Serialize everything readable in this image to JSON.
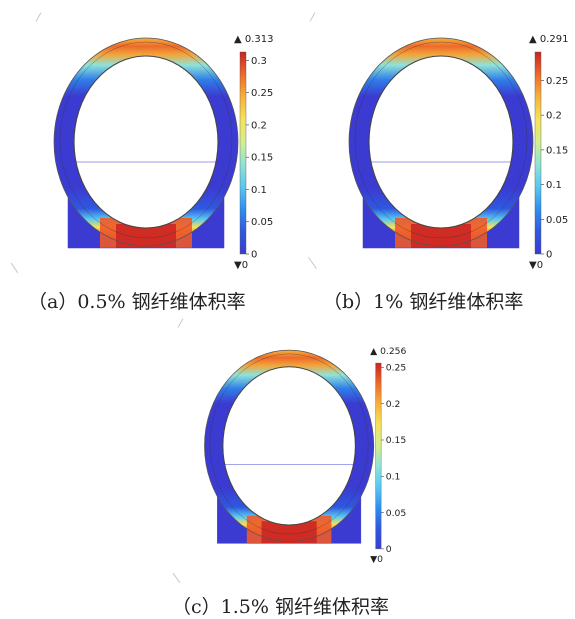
{
  "colormap": [
    "#3b3bd1",
    "#2f58e0",
    "#2f8ff0",
    "#58c7f2",
    "#8fe3d8",
    "#d3ef8c",
    "#f5e35a",
    "#f7b23a",
    "#ee6a2a",
    "#c92323"
  ],
  "panels": [
    {
      "caption": "（a）0.5% 钢纤维体积率",
      "max_label": "0.313",
      "min_label": "0",
      "max_value": 0.313,
      "ticks": [
        "0.3",
        "0.25",
        "0.2",
        "0.15",
        "0.1",
        "0.05",
        "0"
      ]
    },
    {
      "caption": "（b）1% 钢纤维体积率",
      "max_label": "0.291",
      "min_label": "0",
      "max_value": 0.291,
      "ticks": [
        "0.25",
        "0.2",
        "0.15",
        "0.1",
        "0.05",
        "0"
      ]
    },
    {
      "caption": "（c）1.5% 钢纤维体积率",
      "max_label": "0.256",
      "min_label": "0",
      "max_value": 0.256,
      "ticks": [
        "0.25",
        "0.2",
        "0.15",
        "0.1",
        "0.05",
        "0"
      ]
    }
  ]
}
